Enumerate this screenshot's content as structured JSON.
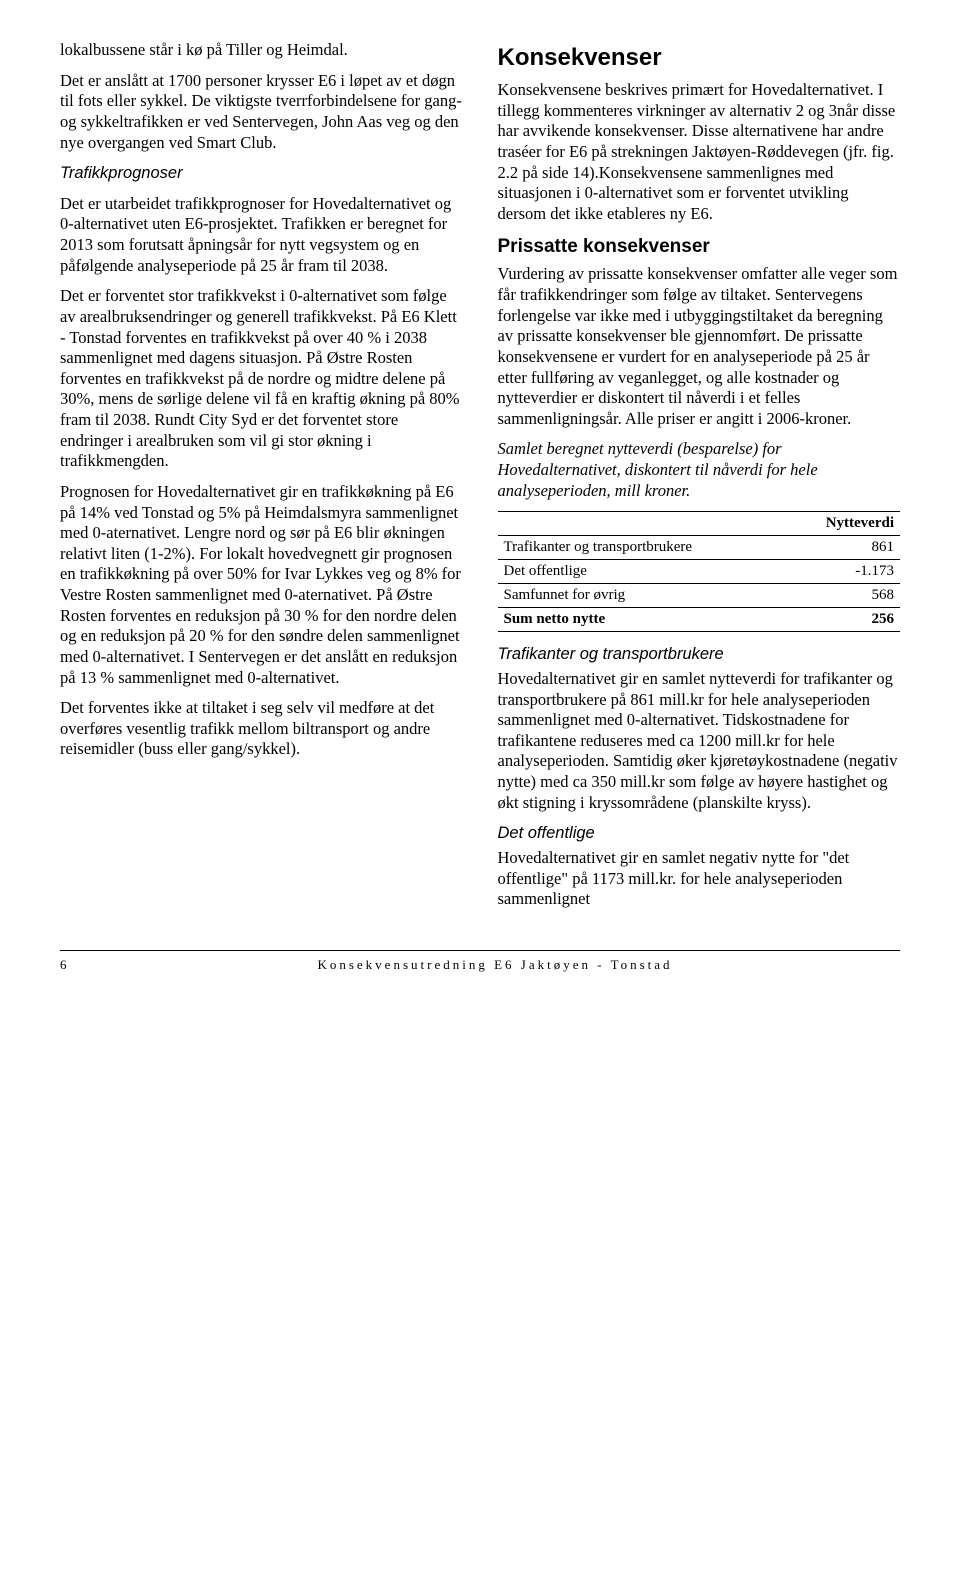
{
  "left": {
    "p1": "lokalbussene står i kø på Tiller og Heimdal.",
    "p2": "Det er anslått at 1700 personer krysser E6 i løpet av et døgn til fots eller sykkel. De viktigste tverrforbindelsene for gang- og sykkeltrafikken er ved Sentervegen, John Aas veg og den nye overgangen ved Smart Club.",
    "h_traf": "Trafikkprognoser",
    "p3": "Det er utarbeidet trafikkprognoser for Hovedalternativet og 0-alternativet uten E6-prosjektet. Trafikken er beregnet for 2013 som forutsatt åpningsår for nytt vegsystem og en påfølgende analyseperiode på 25 år fram til 2038.",
    "p4": "Det er forventet stor trafikkvekst i 0-alternativet som følge av arealbruksendringer og generell trafikkvekst. På E6 Klett - Tonstad forventes en trafikkvekst på over 40 % i 2038 sammenlignet med dagens situasjon. På Østre Rosten forventes en trafikkvekst på de nordre og midtre delene på 30%, mens de sørlige delene vil få en kraftig økning på 80% fram til 2038. Rundt City Syd er det forventet store endringer i arealbruken som vil gi stor økning i trafikkmengden.",
    "p5": "Prognosen for Hovedalternativet gir en trafikkøkning på E6 på 14% ved Tonstad og 5% på Heimdalsmyra sammenlignet med 0-aternativet. Lengre nord og sør på E6 blir økningen relativt liten (1-2%). For lokalt hovedvegnett gir prognosen en trafikkøkning på over 50% for Ivar Lykkes veg og 8% for Vestre Rosten sammenlignet med 0-aternativet. På Østre Rosten forventes en reduksjon på 30 % for den nordre delen og en reduksjon på 20 % for den søndre delen sammenlignet med 0-alternativet. I Sentervegen er det anslått en reduksjon på 13 % sammenlignet med 0-alternativet.",
    "p6": "Det forventes ikke at tiltaket i seg selv vil medføre at det overføres vesentlig trafikk mellom biltransport og andre reisemidler (buss eller gang/sykkel)."
  },
  "right": {
    "h_kons": "Konsekvenser",
    "p1": "Konsekvensene beskrives primært for Hovedalternativet. I tillegg kommenteres virkninger av alternativ 2 og 3når disse har avvikende konsekvenser. Disse alternativene har andre traséer for E6 på strekningen Jaktøyen-Røddevegen (jfr. fig. 2.2 på side 14).Konsekvensene sammenlignes med situasjonen i 0-alternativet som er forventet utvikling dersom det ikke etableres ny E6.",
    "h_pris": "Prissatte konsekvenser",
    "p2": "Vurdering av prissatte konsekvenser omfatter alle veger som får trafikkendringer som følge av tiltaket. Sentervegens forlengelse var ikke med i utbyggingstiltaket da beregning av prissatte konsekvenser ble gjennomført. De prissatte konsekvensene er vurdert for en analyseperiode på 25 år etter fullføring av veganlegget, og alle kostnader og nytteverdier er diskontert til nåverdi i et felles sammenligningsår. Alle priser er angitt i 2006-kroner.",
    "p3": "Samlet beregnet nytteverdi (besparelse) for Hovedalternativet, diskontert til nåverdi for hele analyseperioden, mill kroner.",
    "table": {
      "header": "Nytteverdi",
      "rows": [
        {
          "label": "Trafikanter og transportbrukere",
          "value": "861"
        },
        {
          "label": "Det offentlige",
          "value": "-1.173"
        },
        {
          "label": "Samfunnet for øvrig",
          "value": "568"
        },
        {
          "label": "Sum netto nytte",
          "value": "256",
          "bold": true
        }
      ]
    },
    "sub_traf": "Trafikanter og transportbrukere",
    "p4": "Hovedalternativet gir en samlet nytteverdi for trafikanter og transportbrukere på 861 mill.kr for hele analyseperioden sammenlignet med 0-alternativet. Tidskostnadene for trafikantene reduseres med ca 1200 mill.kr for hele analyseperioden. Samtidig øker kjøretøykostnadene (negativ nytte) med ca 350 mill.kr som følge av høyere hastighet og økt stigning i kryssområdene (planskilte kryss).",
    "sub_off": "Det offentlige",
    "p5": "Hovedalternativet gir en samlet negativ nytte for \"det offentlige\" på 1173 mill.kr. for hele analyseperioden sammenlignet"
  },
  "footer": {
    "page": "6",
    "title": "Konsekvensutredning E6 Jaktøyen - Tonstad"
  }
}
